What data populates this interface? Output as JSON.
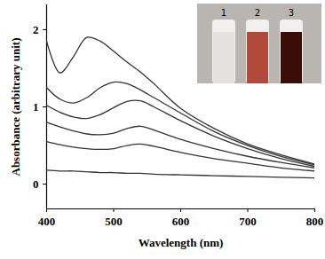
{
  "chart_data": {
    "type": "line",
    "x_label": "Wavelength (nm)",
    "y_label": "Absorbance (arbitrary unit)",
    "x": [
      400,
      420,
      440,
      460,
      480,
      500,
      520,
      540,
      560,
      600,
      650,
      700,
      750,
      800
    ],
    "series": [
      {
        "color": "#333333",
        "values": [
          1.85,
          1.44,
          1.65,
          1.9,
          1.85,
          1.72,
          1.58,
          1.45,
          1.3,
          0.98,
          0.72,
          0.52,
          0.38,
          0.26
        ]
      },
      {
        "color": "#333333",
        "values": [
          1.25,
          1.1,
          1.05,
          1.12,
          1.25,
          1.32,
          1.3,
          1.22,
          1.12,
          0.92,
          0.68,
          0.5,
          0.36,
          0.25
        ]
      },
      {
        "color": "#333333",
        "values": [
          1.02,
          0.93,
          0.87,
          0.85,
          0.9,
          0.99,
          1.07,
          1.08,
          1.0,
          0.82,
          0.62,
          0.46,
          0.33,
          0.23
        ]
      },
      {
        "color": "#333333",
        "values": [
          0.8,
          0.74,
          0.69,
          0.65,
          0.64,
          0.66,
          0.72,
          0.75,
          0.7,
          0.58,
          0.46,
          0.36,
          0.28,
          0.21
        ]
      },
      {
        "color": "#333333",
        "values": [
          0.55,
          0.51,
          0.48,
          0.46,
          0.45,
          0.46,
          0.5,
          0.52,
          0.49,
          0.41,
          0.33,
          0.27,
          0.21,
          0.17
        ]
      },
      {
        "color": "#333333",
        "values": [
          0.18,
          0.17,
          0.17,
          0.16,
          0.15,
          0.15,
          0.14,
          0.14,
          0.13,
          0.12,
          0.11,
          0.1,
          0.09,
          0.08
        ]
      }
    ],
    "xlim": [
      400,
      800
    ],
    "xticks": [
      400,
      500,
      600,
      700,
      800
    ],
    "ylim": [
      -0.32,
      2.32
    ],
    "yticks": [
      0,
      1,
      2
    ],
    "annotations": [
      "1",
      "2",
      "3"
    ]
  }
}
